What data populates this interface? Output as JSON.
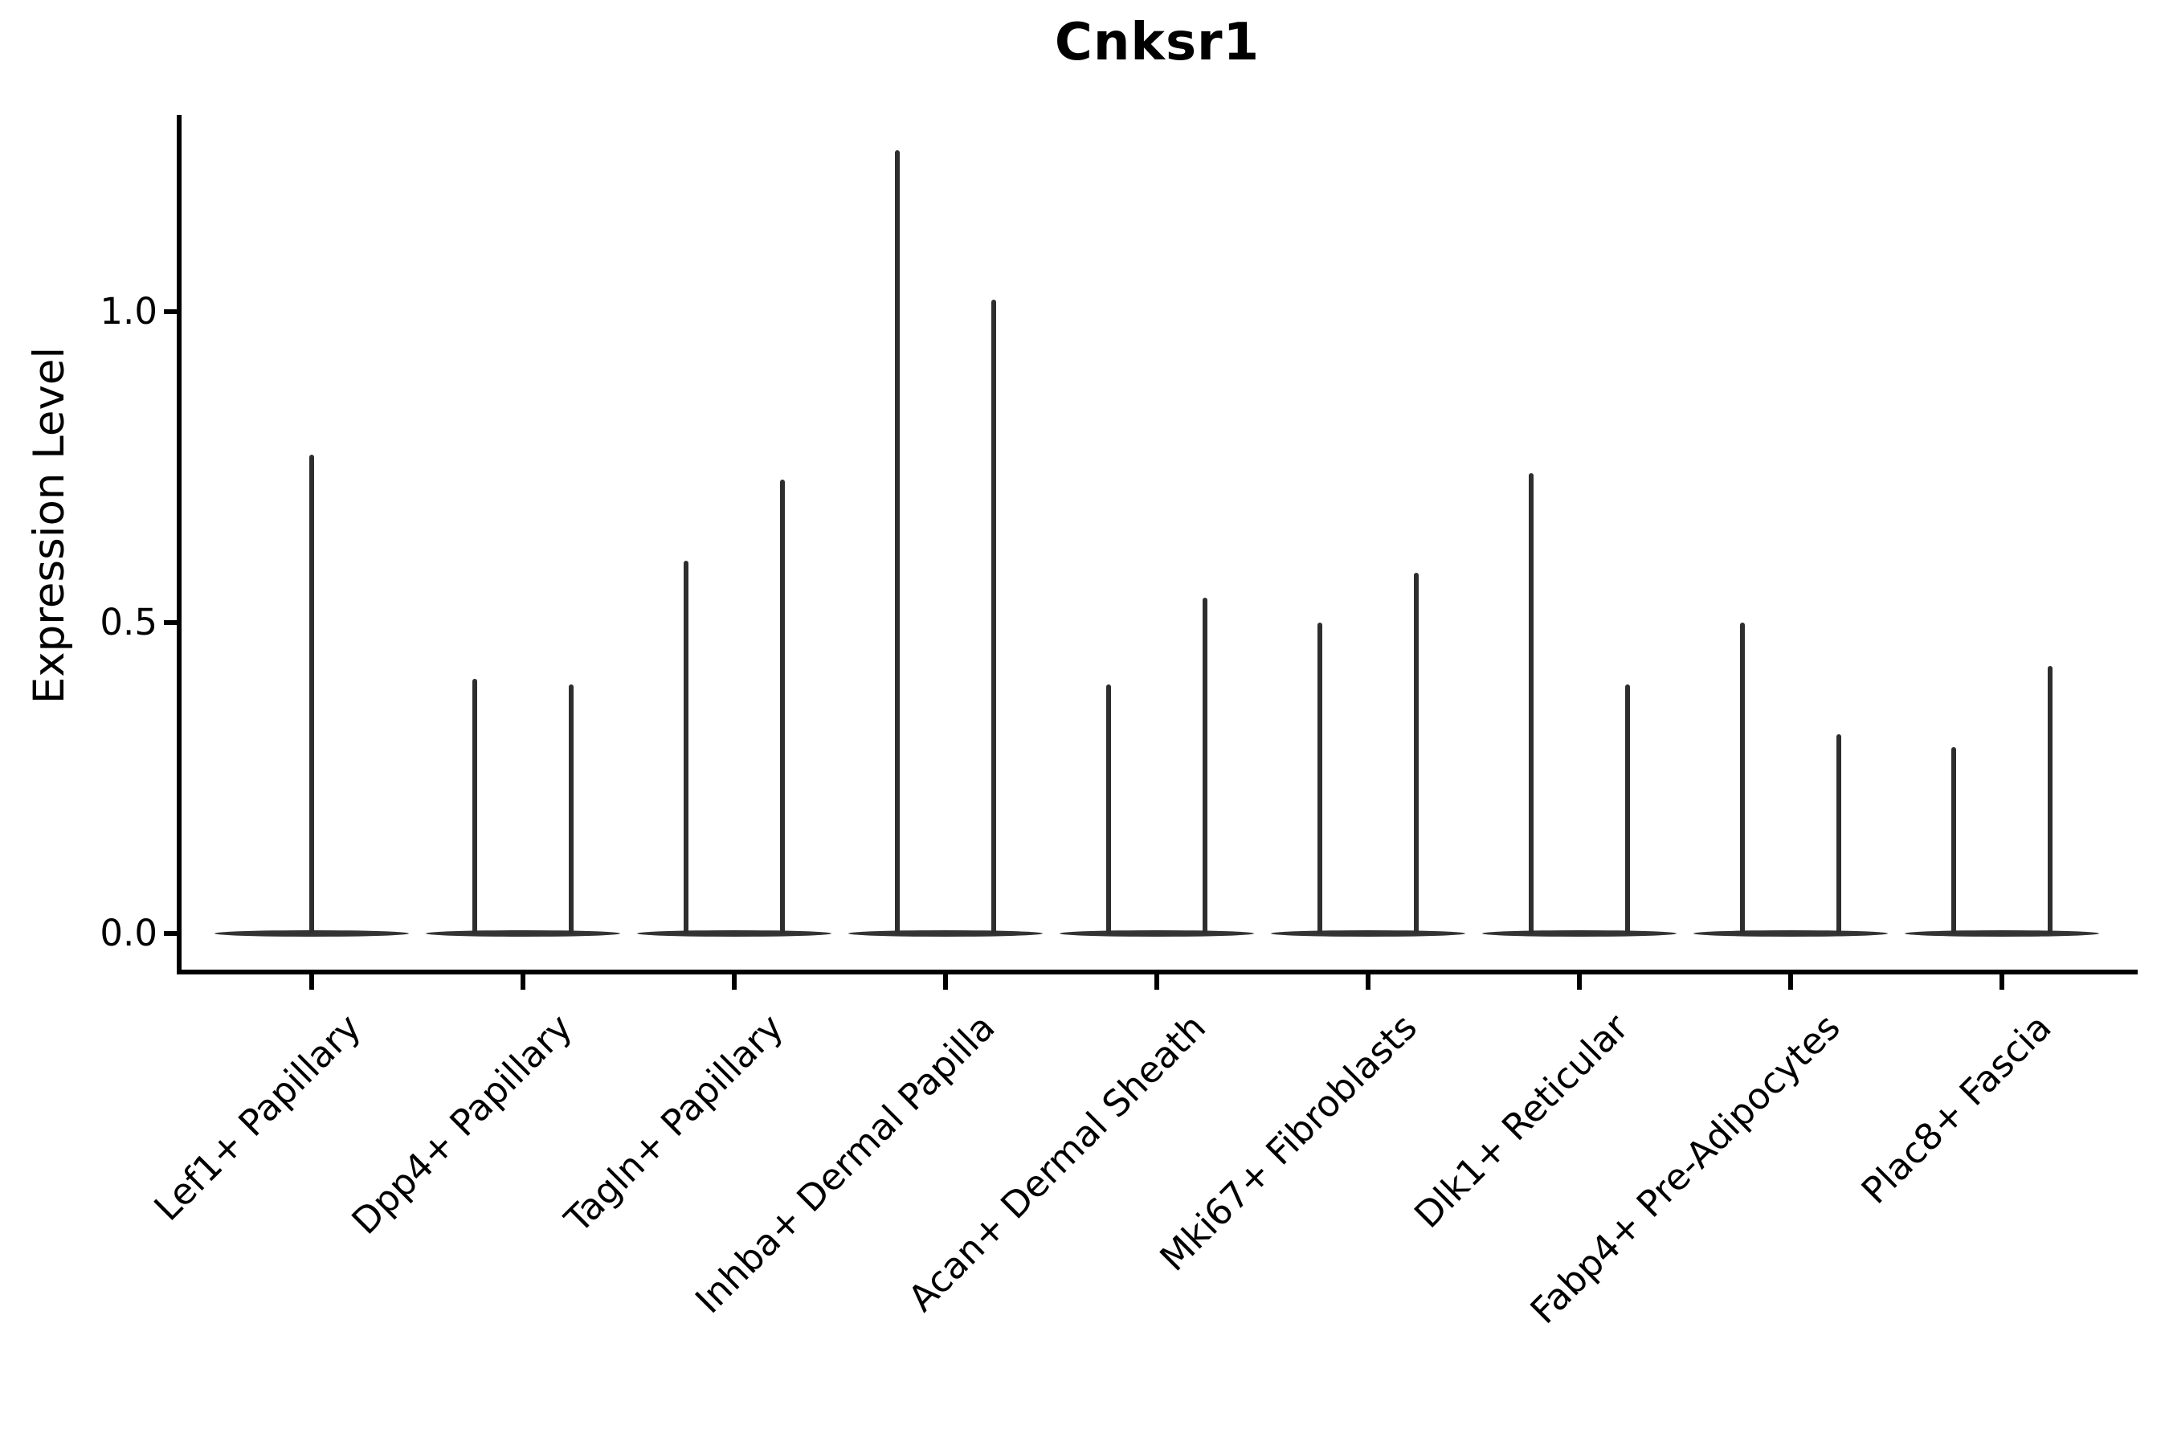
{
  "figure": {
    "title": "Cnksr1",
    "ylabel": "Expression Level"
  },
  "chart_data": {
    "type": "violin",
    "title": "Cnksr1",
    "xlabel": "",
    "ylabel": "Expression Level",
    "grid": false,
    "legend": "none",
    "yticks": [
      "0.0",
      "0.5",
      "1.0"
    ],
    "ytick_values": [
      0.0,
      0.5,
      1.0
    ],
    "ylim": [
      -0.06,
      1.32
    ],
    "categories": [
      "Lef1+ Papillary",
      "Dpp4+ Papillary",
      "Tagln+ Papillary",
      "Inhba+ Dermal Papilla",
      "Acan+ Dermal Sheath",
      "Mki67+ Fibroblasts",
      "Dlk1+ Reticular",
      "Fabp4+ Pre-Adipocytes",
      "Plac8+ Fascia"
    ],
    "violins": [
      {
        "category": "Lef1+ Papillary",
        "body_value": 0.0,
        "density_spike_maxima": [
          0.77
        ]
      },
      {
        "category": "Dpp4+ Papillary",
        "body_value": 0.0,
        "density_spike_maxima": [
          0.41,
          0.4
        ]
      },
      {
        "category": "Tagln+ Papillary",
        "body_value": 0.0,
        "density_spike_maxima": [
          0.6,
          0.73
        ]
      },
      {
        "category": "Inhba+ Dermal Papilla",
        "body_value": 0.0,
        "density_spike_maxima": [
          1.26,
          1.02
        ]
      },
      {
        "category": "Acan+ Dermal Sheath",
        "body_value": 0.0,
        "density_spike_maxima": [
          0.4,
          0.54
        ]
      },
      {
        "category": "Mki67+ Fibroblasts",
        "body_value": 0.0,
        "density_spike_maxima": [
          0.5,
          0.58
        ]
      },
      {
        "category": "Dlk1+ Reticular",
        "body_value": 0.0,
        "density_spike_maxima": [
          0.74,
          0.4
        ]
      },
      {
        "category": "Fabp4+ Pre-Adipocytes",
        "body_value": 0.0,
        "density_spike_maxima": [
          0.5,
          0.32
        ]
      },
      {
        "category": "Plac8+ Fascia",
        "body_value": 0.0,
        "density_spike_maxima": [
          0.3,
          0.43
        ]
      }
    ],
    "colors": {
      "spike": "#2e2e2e",
      "violin_body": "#333333",
      "axis": "#000000",
      "background": "#ffffff"
    }
  }
}
